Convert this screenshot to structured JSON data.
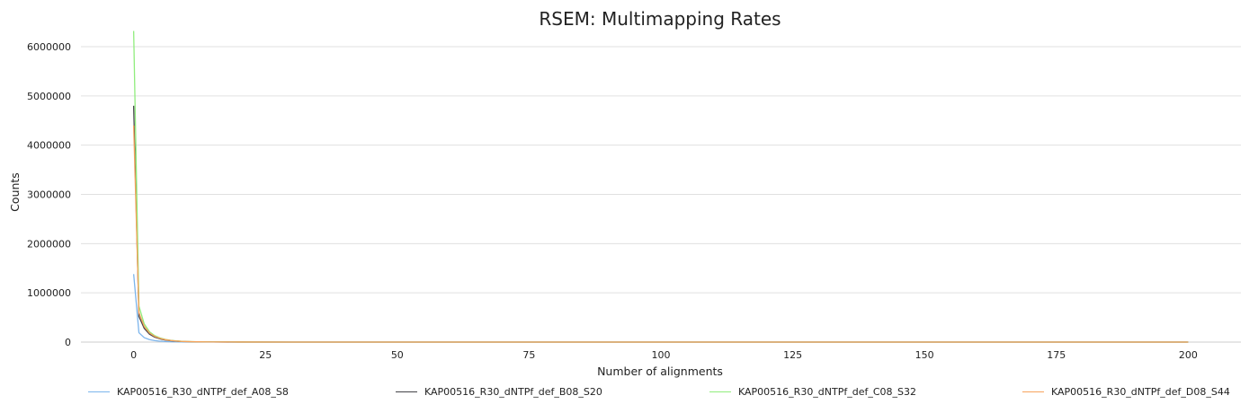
{
  "chart_data": {
    "type": "line",
    "title": "RSEM: Multimapping Rates",
    "xlabel": "Number of alignments",
    "ylabel": "Counts",
    "xlim": [
      -10,
      210
    ],
    "ylim": [
      0,
      6000000
    ],
    "x_ticks": [
      0,
      25,
      50,
      75,
      100,
      125,
      150,
      175,
      200
    ],
    "y_ticks": [
      0,
      1000000,
      2000000,
      3000000,
      4000000,
      5000000,
      6000000
    ],
    "x_tick_labels": [
      "0",
      "25",
      "50",
      "75",
      "100",
      "125",
      "150",
      "175",
      "200"
    ],
    "y_tick_labels": [
      "0",
      "1000000",
      "2000000",
      "3000000",
      "4000000",
      "5000000",
      "6000000"
    ],
    "grid": true,
    "legend_position": "bottom",
    "x": [
      0,
      1,
      2,
      3,
      4,
      5,
      6,
      7,
      8,
      9,
      10,
      12,
      15,
      20,
      30,
      50,
      100,
      150,
      200
    ],
    "series": [
      {
        "name": "KAP00516_R30_dNTPf_def_A08_S8",
        "color": "#7cb5ec",
        "values": [
          1380000,
          190000,
          90000,
          50000,
          30000,
          18000,
          11000,
          7000,
          4500,
          3000,
          2000,
          1000,
          500,
          200,
          50,
          10,
          0,
          0,
          0
        ]
      },
      {
        "name": "KAP00516_R30_dNTPf_def_B08_S20",
        "color": "#434348",
        "values": [
          4800000,
          520000,
          280000,
          160000,
          100000,
          65000,
          42000,
          28000,
          19000,
          13000,
          9000,
          5000,
          2500,
          900,
          200,
          30,
          0,
          0,
          0
        ]
      },
      {
        "name": "KAP00516_R30_dNTPf_def_C08_S32",
        "color": "#90ed7d",
        "values": [
          6320000,
          730000,
          370000,
          210000,
          130000,
          85000,
          55000,
          37000,
          25000,
          17000,
          12000,
          6500,
          3000,
          1100,
          250,
          40,
          0,
          0,
          0
        ]
      },
      {
        "name": "KAP00516_R30_dNTPf_def_D08_S44",
        "color": "#f7a35c",
        "values": [
          4400000,
          600000,
          320000,
          185000,
          115000,
          75000,
          49000,
          33000,
          22000,
          15000,
          10500,
          5800,
          2700,
          1000,
          220,
          35,
          0,
          0,
          0
        ]
      }
    ]
  }
}
